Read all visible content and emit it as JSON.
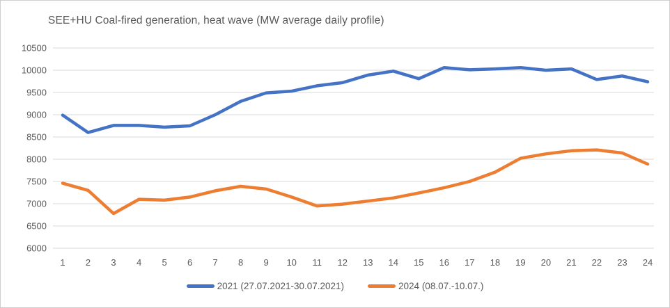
{
  "chart_data": {
    "type": "line",
    "title": "SEE+HU Coal-fired generation, heat wave (MW average daily profile)",
    "xlabel": "",
    "ylabel": "",
    "categories": [
      1,
      2,
      3,
      4,
      5,
      6,
      7,
      8,
      9,
      10,
      11,
      12,
      13,
      14,
      15,
      16,
      17,
      18,
      19,
      20,
      21,
      22,
      23,
      24
    ],
    "series": [
      {
        "name": "2021 (27.07.2021-30.07.2021)",
        "color": "#4472C4",
        "values": [
          8990,
          8600,
          8760,
          8760,
          8720,
          8750,
          9000,
          9300,
          9490,
          9530,
          9650,
          9720,
          9890,
          9980,
          9810,
          10060,
          10010,
          10030,
          10060,
          10000,
          10030,
          9790,
          9870,
          9740
        ]
      },
      {
        "name": "2024 (08.07.-10.07.)",
        "color": "#ED7D31",
        "values": [
          7460,
          7300,
          6780,
          7100,
          7080,
          7150,
          7290,
          7390,
          7330,
          7150,
          6950,
          6990,
          7060,
          7130,
          7240,
          7360,
          7500,
          7710,
          8020,
          8120,
          8190,
          8210,
          8140,
          7890
        ]
      }
    ],
    "ylim": [
      6000,
      10500
    ],
    "ytick_step": 500,
    "yticks": [
      6000,
      6500,
      7000,
      7500,
      8000,
      8500,
      9000,
      9500,
      10000,
      10500
    ],
    "grid": "horizontal",
    "gridline_color": "#d9d9d9",
    "axis_label_color": "#595959",
    "title_color": "#595959",
    "legend_position": "bottom"
  }
}
